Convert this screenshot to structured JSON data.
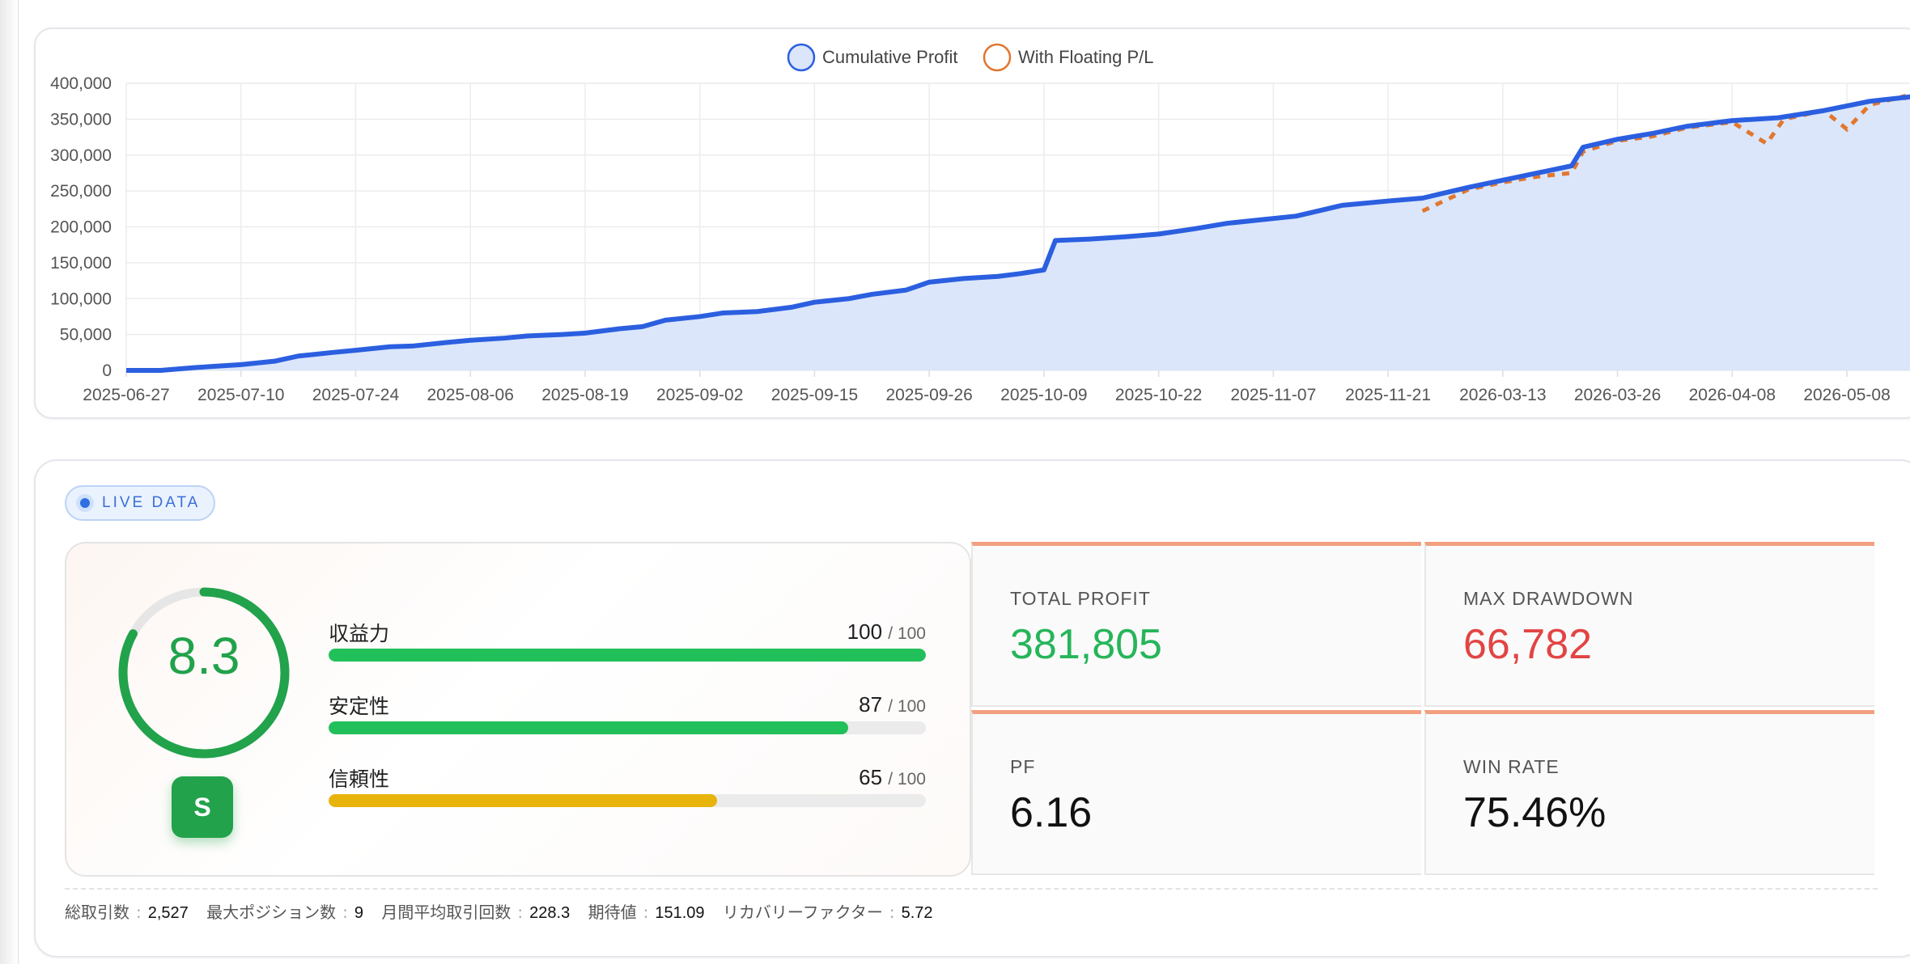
{
  "chart_data": {
    "type": "area",
    "legend": [
      {
        "name": "Cumulative Profit",
        "color": "#2b5fe0",
        "fill": "#dbe6fb",
        "style": "solid"
      },
      {
        "name": "With Floating P/L",
        "color": "#e1772e",
        "fill": "#ffffff",
        "style": "dotted"
      }
    ],
    "legend_position": "top-center",
    "y_ticks": [
      "400,000",
      "350,000",
      "300,000",
      "250,000",
      "200,000",
      "150,000",
      "100,000",
      "50,000",
      "0"
    ],
    "ylim": [
      0,
      400000
    ],
    "x_ticks": [
      "2025-06-27",
      "2025-07-10",
      "2025-07-24",
      "2025-08-06",
      "2025-08-19",
      "2025-09-02",
      "2025-09-15",
      "2025-09-26",
      "2025-10-09",
      "2025-10-22",
      "2025-11-07",
      "2025-11-21",
      "2026-03-13",
      "2026-03-26",
      "2026-04-08",
      "2026-05-08"
    ],
    "grid": true,
    "series": [
      {
        "name": "Cumulative Profit",
        "points": [
          [
            0,
            0
          ],
          [
            0.3,
            0
          ],
          [
            0.6,
            4000
          ],
          [
            1.0,
            8000
          ],
          [
            1.3,
            13000
          ],
          [
            1.5,
            20000
          ],
          [
            1.8,
            25000
          ],
          [
            2.0,
            28000
          ],
          [
            2.3,
            33000
          ],
          [
            2.5,
            34000
          ],
          [
            2.8,
            39000
          ],
          [
            3.0,
            42000
          ],
          [
            3.3,
            45000
          ],
          [
            3.5,
            48000
          ],
          [
            3.8,
            50000
          ],
          [
            4.0,
            52000
          ],
          [
            4.3,
            58000
          ],
          [
            4.5,
            61000
          ],
          [
            4.7,
            70000
          ],
          [
            5.0,
            75000
          ],
          [
            5.2,
            80000
          ],
          [
            5.5,
            82000
          ],
          [
            5.8,
            88000
          ],
          [
            6.0,
            95000
          ],
          [
            6.3,
            100000
          ],
          [
            6.5,
            106000
          ],
          [
            6.8,
            112000
          ],
          [
            7.0,
            123000
          ],
          [
            7.3,
            128000
          ],
          [
            7.6,
            131000
          ],
          [
            7.8,
            135000
          ],
          [
            8.0,
            140000
          ],
          [
            8.1,
            181000
          ],
          [
            8.4,
            183000
          ],
          [
            8.7,
            186000
          ],
          [
            9.0,
            190000
          ],
          [
            9.3,
            197000
          ],
          [
            9.6,
            205000
          ],
          [
            9.9,
            210000
          ],
          [
            10.2,
            215000
          ],
          [
            10.6,
            230000
          ],
          [
            11.0,
            236000
          ],
          [
            11.3,
            240000
          ],
          [
            11.7,
            255000
          ],
          [
            12.0,
            265000
          ],
          [
            12.3,
            275000
          ],
          [
            12.6,
            285000
          ],
          [
            12.7,
            311000
          ],
          [
            13.0,
            322000
          ],
          [
            13.3,
            330000
          ],
          [
            13.6,
            340000
          ],
          [
            14.0,
            348000
          ],
          [
            14.4,
            352000
          ],
          [
            14.8,
            362000
          ],
          [
            15.2,
            375000
          ],
          [
            15.6,
            382000
          ]
        ]
      },
      {
        "name": "With Floating P/L",
        "points": [
          [
            11.3,
            222000
          ],
          [
            11.7,
            252000
          ],
          [
            12.0,
            262000
          ],
          [
            12.3,
            270000
          ],
          [
            12.6,
            275000
          ],
          [
            12.7,
            305000
          ],
          [
            13.0,
            320000
          ],
          [
            13.3,
            326000
          ],
          [
            13.6,
            338000
          ],
          [
            14.0,
            346000
          ],
          [
            14.3,
            316000
          ],
          [
            14.45,
            350000
          ],
          [
            14.8,
            362000
          ],
          [
            15.0,
            336000
          ],
          [
            15.2,
            370000
          ],
          [
            15.5,
            382000
          ],
          [
            15.6,
            364000
          ]
        ]
      }
    ]
  },
  "live_badge": {
    "label": "LIVE DATA"
  },
  "score": {
    "value": "8.3",
    "ratio": 0.83,
    "grade": "S",
    "color": "#21a24b",
    "metrics": [
      {
        "label": "収益力",
        "score": "100",
        "max": "/ 100",
        "fraction": 1.0,
        "color": "#22c05a"
      },
      {
        "label": "安定性",
        "score": "87",
        "max": "/ 100",
        "fraction": 0.87,
        "color": "#22c05a"
      },
      {
        "label": "信頼性",
        "score": "65",
        "max": "/ 100",
        "fraction": 0.65,
        "color": "#e8b40c"
      }
    ]
  },
  "kpis": [
    {
      "label": "TOTAL PROFIT",
      "value": "381,805",
      "color": "#26b55a"
    },
    {
      "label": "MAX DRAWDOWN",
      "value": "66,782",
      "color": "#e24444"
    },
    {
      "label": "PF",
      "value": "6.16",
      "color": "#111111"
    },
    {
      "label": "WIN RATE",
      "value": "75.46%",
      "color": "#111111"
    }
  ],
  "footer": [
    {
      "label": "総取引数",
      "value": "2,527"
    },
    {
      "label": "最大ポジション数",
      "value": "9"
    },
    {
      "label": "月間平均取引回数",
      "value": "228.3"
    },
    {
      "label": "期待値",
      "value": "151.09"
    },
    {
      "label": "リカバリーファクター",
      "value": "5.72"
    }
  ]
}
